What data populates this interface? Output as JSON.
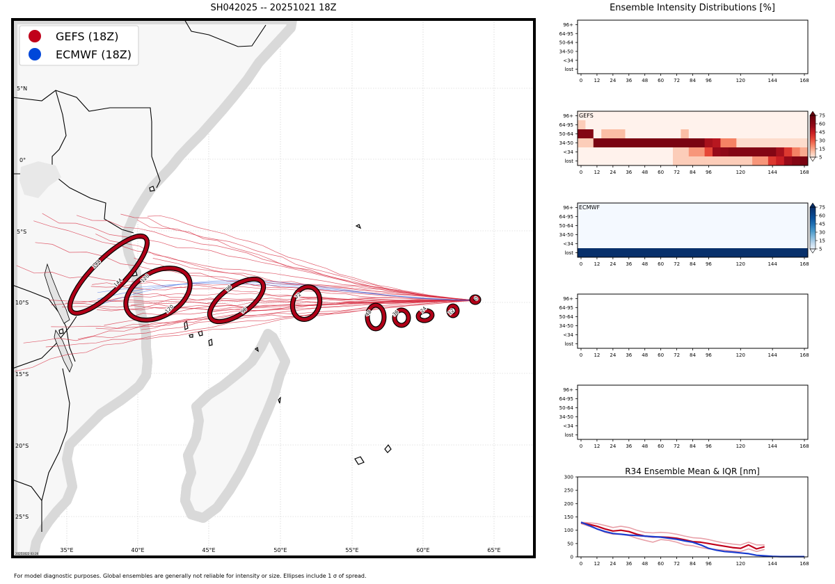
{
  "map": {
    "title": "SH042025 -- 20251021 18Z",
    "legend": [
      {
        "label": "GEFS (18Z)",
        "color": "#c0001a"
      },
      {
        "label": "ECMWF (18Z)",
        "color": "#0047d9"
      }
    ],
    "lat_labels": [
      "5°N",
      "0°",
      "5°S",
      "10°S",
      "15°S",
      "20°S",
      "25°S"
    ],
    "lon_labels": [
      "35°E",
      "40°E",
      "45°E",
      "50°E",
      "55°E",
      "60°E",
      "65°E"
    ],
    "stamp": "20251022 03:26",
    "forecast_hours": [
      "0",
      "12",
      "24",
      "36",
      "48",
      "72",
      "96",
      "96",
      "120",
      "120",
      "144",
      "144"
    ]
  },
  "footnote": "For model diagnostic purposes. Global ensembles are generally not reliable for intensity or size. Ellipses include 1 σ of spread.",
  "panels": {
    "intensity_title": "Ensemble Intensity Distributions [%]",
    "categories": [
      "96+",
      "64-95",
      "50-64",
      "34-50",
      "<34",
      "lost"
    ],
    "x_ticks": [
      "0",
      "12",
      "24",
      "36",
      "48",
      "60",
      "72",
      "84",
      "96",
      "120",
      "144",
      "168"
    ],
    "gefs_label": "GEFS",
    "ecmwf_label": "ECMWF",
    "colorbar_ticks": [
      "75",
      "60",
      "45",
      "30",
      "15",
      "5"
    ],
    "r34_title": "R34 Ensemble Mean & IQR [nm]"
  },
  "chart_data": [
    {
      "type": "heatmap",
      "title": "GEFS",
      "categories": [
        "96+",
        "64-95",
        "50-64",
        "34-50",
        "<34",
        "lost"
      ],
      "x": [
        0,
        6,
        12,
        18,
        24,
        30,
        36,
        42,
        48,
        54,
        60,
        66,
        72,
        78,
        84,
        90,
        96,
        102,
        108,
        114,
        120,
        126,
        132,
        138,
        144,
        150,
        156,
        162,
        168
      ],
      "values": [
        [
          0,
          0,
          0,
          0,
          0,
          0,
          0,
          0,
          0,
          0,
          0,
          0,
          0,
          0,
          0,
          0,
          0,
          0,
          0,
          0,
          0,
          0,
          0,
          0,
          0,
          0,
          0,
          0,
          0
        ],
        [
          10,
          0,
          0,
          0,
          0,
          0,
          0,
          0,
          0,
          0,
          0,
          0,
          0,
          0,
          0,
          0,
          0,
          0,
          0,
          0,
          0,
          0,
          0,
          0,
          0,
          0,
          0,
          0,
          0
        ],
        [
          85,
          85,
          0,
          15,
          15,
          15,
          0,
          0,
          0,
          0,
          0,
          0,
          0,
          15,
          0,
          0,
          0,
          0,
          0,
          0,
          0,
          0,
          0,
          0,
          0,
          0,
          0,
          0,
          0
        ],
        [
          10,
          10,
          90,
          90,
          90,
          90,
          90,
          90,
          90,
          90,
          90,
          90,
          90,
          90,
          90,
          90,
          70,
          65,
          30,
          30,
          5,
          5,
          5,
          5,
          5,
          5,
          5,
          5,
          5
        ],
        [
          0,
          0,
          0,
          0,
          0,
          0,
          0,
          0,
          0,
          0,
          0,
          0,
          10,
          10,
          25,
          25,
          45,
          75,
          80,
          85,
          85,
          85,
          85,
          85,
          85,
          70,
          50,
          30,
          20
        ],
        [
          0,
          0,
          0,
          0,
          0,
          0,
          0,
          0,
          0,
          0,
          0,
          0,
          10,
          10,
          10,
          10,
          10,
          10,
          10,
          10,
          10,
          10,
          25,
          25,
          50,
          60,
          75,
          85,
          90
        ]
      ],
      "xlim": [
        0,
        168
      ]
    },
    {
      "type": "heatmap",
      "title": "ECMWF",
      "categories": [
        "96+",
        "64-95",
        "50-64",
        "34-50",
        "<34",
        "lost"
      ],
      "x": [
        0,
        168
      ],
      "values": [
        [
          0,
          0
        ],
        [
          0,
          0
        ],
        [
          0,
          0
        ],
        [
          0,
          0
        ],
        [
          0,
          0
        ],
        [
          100,
          100
        ]
      ],
      "xlim": [
        0,
        168
      ]
    },
    {
      "type": "line",
      "title": "R34 Ensemble Mean & IQR [nm]",
      "x": [
        0,
        6,
        12,
        18,
        24,
        30,
        36,
        42,
        48,
        54,
        60,
        66,
        72,
        78,
        84,
        90,
        96,
        102,
        108,
        114,
        120,
        126,
        132,
        138,
        144,
        150,
        156,
        162,
        168
      ],
      "series": [
        {
          "name": "GEFS mean",
          "color": "#c0001a",
          "values": [
            128,
            122,
            115,
            105,
            97,
            100,
            95,
            85,
            78,
            75,
            75,
            73,
            70,
            64,
            57,
            55,
            50,
            45,
            40,
            35,
            32,
            45,
            30,
            38,
            null,
            null,
            null,
            null,
            null
          ]
        },
        {
          "name": "GEFS IQR high",
          "color": "#e8a0a8",
          "values": [
            130,
            128,
            125,
            118,
            110,
            115,
            110,
            100,
            92,
            90,
            92,
            90,
            85,
            78,
            72,
            70,
            65,
            58,
            52,
            48,
            45,
            55,
            45,
            45,
            null,
            null,
            null,
            null,
            null
          ]
        },
        {
          "name": "GEFS IQR low",
          "color": "#e8a0a8",
          "values": [
            125,
            115,
            105,
            92,
            85,
            85,
            80,
            70,
            62,
            55,
            65,
            62,
            55,
            45,
            42,
            35,
            30,
            28,
            25,
            22,
            20,
            30,
            20,
            28,
            null,
            null,
            null,
            null,
            null
          ]
        },
        {
          "name": "ECMWF mean",
          "color": "#1a3ccf",
          "values": [
            130,
            118,
            105,
            95,
            88,
            85,
            82,
            80,
            78,
            76,
            74,
            70,
            66,
            60,
            55,
            45,
            32,
            25,
            20,
            18,
            15,
            12,
            6,
            4,
            2,
            1,
            1,
            1,
            1
          ]
        }
      ],
      "xlabel": "",
      "ylabel": "",
      "ylim": [
        0,
        300
      ],
      "xlim": [
        0,
        168
      ],
      "yticks": [
        "0",
        "50",
        "100",
        "150",
        "200",
        "250",
        "300"
      ]
    }
  ]
}
